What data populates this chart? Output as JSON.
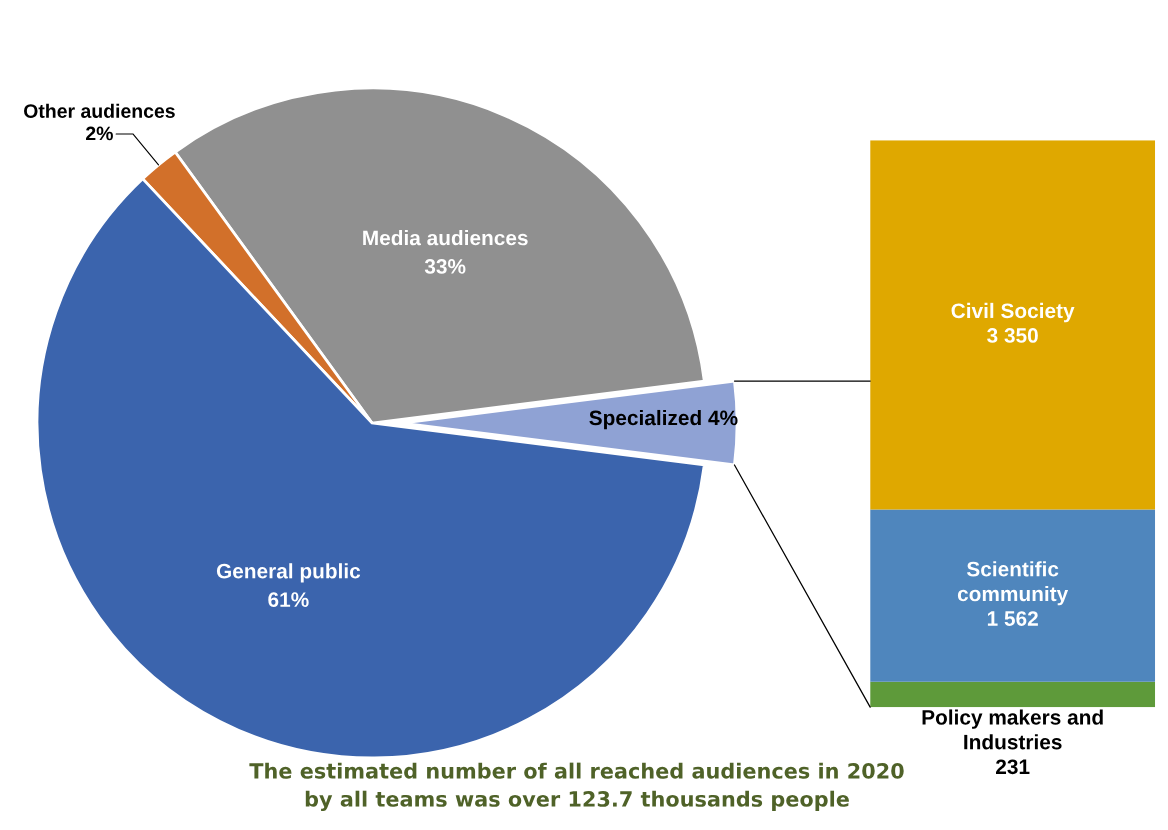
{
  "chart_data": [
    {
      "type": "pie",
      "categories": [
        "Specialized",
        "Media audiences",
        "Other audiences",
        "General public"
      ],
      "values": [
        4,
        33,
        2,
        61
      ],
      "colors": [
        "#8fa2d4",
        "#909090",
        "#d2702a",
        "#3b64ad"
      ],
      "data_labels": true,
      "value_labels": [
        "4%",
        "33%",
        "2%",
        "61%"
      ],
      "annotations": [
        "The estimated number of all reached audiences in 2020 by all teams was over 123.7 thousands people"
      ]
    },
    {
      "type": "bar",
      "stacked": true,
      "categories": [
        null
      ],
      "data_labels": true,
      "series": [
        {
          "name": "Policy makers and Industries",
          "color": "#5e9a3a",
          "values": [
            231
          ],
          "value_labels": [
            "231"
          ]
        },
        {
          "name": "Scientific community",
          "color": "#4f86bd",
          "values": [
            1562
          ],
          "value_labels": [
            "1 562"
          ]
        },
        {
          "name": "Civil Society",
          "color": "#dfa800",
          "values": [
            3350
          ],
          "value_labels": [
            "3 350"
          ]
        }
      ]
    }
  ]
}
